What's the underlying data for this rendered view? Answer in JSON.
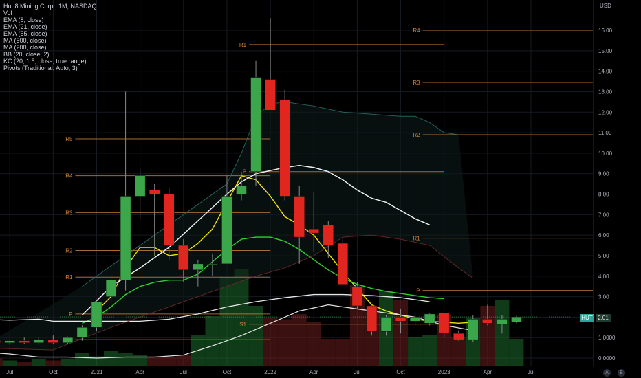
{
  "header": {
    "title": "Hut 8 Mining Corp., 1M, NASDAQ",
    "indicators": [
      "Vol",
      "EMA (8, close)",
      "EMA (21, close)",
      "EMA (55, close)",
      "MA (500, close)",
      "MA (200, close)",
      "BB (20, close, 2)",
      "KC (20, 1.5, close, true range)",
      "Pivots (Traditional, Auto, 3)"
    ]
  },
  "axis": {
    "currency": "USD"
  },
  "last_price": {
    "ticker": "HUT",
    "value": "2.01"
  },
  "corner_buttons": {
    "auto": "A",
    "log": "B"
  },
  "colors": {
    "up": "#3ba64a",
    "down": "#e0261f",
    "ema8": "#f5e400",
    "ema21": "#2fd12f",
    "ema55": "#e8e8e8",
    "pivot": "#d1843a"
  },
  "chart_data": {
    "type": "candlestick",
    "ylim": [
      -0.15,
      17.3
    ],
    "y_ticks": [
      0,
      1,
      2,
      3,
      4,
      5,
      6,
      7,
      8,
      9,
      10,
      11,
      12,
      13,
      14,
      15,
      16
    ],
    "y_tick_labels": [
      "0.0000",
      "1.0000",
      "2.00",
      "3.00",
      "4.00",
      "5.00",
      "6.00",
      "7.00",
      "8.00",
      "9.00",
      "10.00",
      "11.00",
      "12.00",
      "13.00",
      "14.00",
      "15.00",
      "16.00"
    ],
    "x_tick_labels": [
      {
        "label": "Jul",
        "i": -1
      },
      {
        "label": "Oct",
        "i": 2
      },
      {
        "label": "2021",
        "i": 5
      },
      {
        "label": "Apr",
        "i": 8
      },
      {
        "label": "Jul",
        "i": 11
      },
      {
        "label": "Oct",
        "i": 14
      },
      {
        "label": "2022",
        "i": 17
      },
      {
        "label": "Apr",
        "i": 20
      },
      {
        "label": "Jul",
        "i": 23
      },
      {
        "label": "Oct",
        "i": 26
      },
      {
        "label": "2023",
        "i": 29
      },
      {
        "label": "Apr",
        "i": 32
      },
      {
        "label": "Jul",
        "i": 35
      }
    ],
    "candles": [
      {
        "i": -2,
        "o": 0.85,
        "h": 1.0,
        "l": 0.7,
        "c": 0.75
      },
      {
        "i": -1,
        "o": 0.75,
        "h": 0.9,
        "l": 0.65,
        "c": 0.85
      },
      {
        "i": 0,
        "o": 0.85,
        "h": 1.0,
        "l": 0.7,
        "c": 0.75
      },
      {
        "i": 1,
        "o": 0.75,
        "h": 1.0,
        "l": 0.65,
        "c": 0.9
      },
      {
        "i": 2,
        "o": 0.9,
        "h": 1.1,
        "l": 0.7,
        "c": 0.75
      },
      {
        "i": 3,
        "o": 0.75,
        "h": 1.05,
        "l": 0.7,
        "c": 1.0
      },
      {
        "i": 4,
        "o": 1.0,
        "h": 1.6,
        "l": 0.85,
        "c": 1.5
      },
      {
        "i": 5,
        "o": 1.5,
        "h": 2.8,
        "l": 1.3,
        "c": 2.75
      },
      {
        "i": 6,
        "o": 3.0,
        "h": 4.1,
        "l": 2.7,
        "c": 3.8
      },
      {
        "i": 7,
        "o": 3.8,
        "h": 13.0,
        "l": 3.3,
        "c": 7.9
      },
      {
        "i": 8,
        "o": 7.9,
        "h": 9.3,
        "l": 6.8,
        "c": 8.9
      },
      {
        "i": 9,
        "o": 8.2,
        "h": 8.5,
        "l": 5.0,
        "c": 8.0
      },
      {
        "i": 10,
        "o": 8.0,
        "h": 8.3,
        "l": 4.8,
        "c": 5.5
      },
      {
        "i": 11,
        "o": 5.5,
        "h": 5.8,
        "l": 3.7,
        "c": 4.3
      },
      {
        "i": 12,
        "o": 4.3,
        "h": 4.8,
        "l": 3.5,
        "c": 4.6
      },
      {
        "i": 13,
        "o": 4.6,
        "h": 5.1,
        "l": 4.0,
        "c": 4.6
      },
      {
        "i": 14,
        "o": 4.6,
        "h": 8.9,
        "l": 4.6,
        "c": 7.9
      },
      {
        "i": 15,
        "o": 8.0,
        "h": 9.1,
        "l": 7.7,
        "c": 8.4
      },
      {
        "i": 16,
        "o": 9.1,
        "h": 14.5,
        "l": 8.4,
        "c": 13.7
      },
      {
        "i": 17,
        "o": 13.6,
        "h": 16.6,
        "l": 12.2,
        "c": 12.1
      },
      {
        "i": 18,
        "o": 12.6,
        "h": 13.1,
        "l": 7.7,
        "c": 7.9
      },
      {
        "i": 19,
        "o": 7.9,
        "h": 8.4,
        "l": 4.6,
        "c": 5.9
      },
      {
        "i": 20,
        "o": 6.3,
        "h": 8.1,
        "l": 5.2,
        "c": 6.1
      },
      {
        "i": 21,
        "o": 6.5,
        "h": 6.7,
        "l": 4.9,
        "c": 5.5
      },
      {
        "i": 22,
        "o": 5.6,
        "h": 5.9,
        "l": 3.7,
        "c": 3.6
      },
      {
        "i": 23,
        "o": 3.5,
        "h": 3.7,
        "l": 2.4,
        "c": 2.55
      },
      {
        "i": 24,
        "o": 2.55,
        "h": 2.6,
        "l": 1.1,
        "c": 1.3
      },
      {
        "i": 25,
        "o": 1.3,
        "h": 2.1,
        "l": 1.1,
        "c": 2.0
      },
      {
        "i": 26,
        "o": 2.0,
        "h": 2.4,
        "l": 1.2,
        "c": 1.8
      },
      {
        "i": 27,
        "o": 1.8,
        "h": 2.1,
        "l": 1.6,
        "c": 2.0
      },
      {
        "i": 28,
        "o": 1.7,
        "h": 2.2,
        "l": 1.6,
        "c": 2.15
      },
      {
        "i": 29,
        "o": 2.2,
        "h": 2.2,
        "l": 1.0,
        "c": 1.2
      },
      {
        "i": 30,
        "o": 1.2,
        "h": 1.35,
        "l": 0.85,
        "c": 0.9
      },
      {
        "i": 31,
        "o": 0.9,
        "h": 2.1,
        "l": 0.8,
        "c": 1.9
      },
      {
        "i": 32,
        "o": 1.9,
        "h": 2.6,
        "l": 1.6,
        "c": 1.7
      },
      {
        "i": 33,
        "o": 1.65,
        "h": 2.1,
        "l": 1.2,
        "c": 1.9
      },
      {
        "i": 34,
        "o": 1.75,
        "h": 2.05,
        "l": 1.7,
        "c": 2.01
      }
    ],
    "volume": [
      {
        "i": -2,
        "v": 0.35
      },
      {
        "i": -1,
        "v": 0.25
      },
      {
        "i": 0,
        "v": 0.2
      },
      {
        "i": 1,
        "v": 0.3
      },
      {
        "i": 2,
        "v": 0.25
      },
      {
        "i": 3,
        "v": 0.3
      },
      {
        "i": 4,
        "v": 0.6
      },
      {
        "i": 5,
        "v": 0.45
      },
      {
        "i": 6,
        "v": 0.7
      },
      {
        "i": 7,
        "v": 0.6
      },
      {
        "i": 8,
        "v": 0.5
      },
      {
        "i": 9,
        "v": 0.45
      },
      {
        "i": 10,
        "v": 0.4
      },
      {
        "i": 11,
        "v": 0.5
      },
      {
        "i": 12,
        "v": 1.5
      },
      {
        "i": 13,
        "v": 2.4
      },
      {
        "i": 14,
        "v": 4.3
      },
      {
        "i": 15,
        "v": 4.7
      },
      {
        "i": 16,
        "v": 2.9
      },
      {
        "i": 17,
        "v": 2.3
      },
      {
        "i": 18,
        "v": 2.25
      },
      {
        "i": 19,
        "v": 2.5
      },
      {
        "i": 20,
        "v": 2.1
      },
      {
        "i": 21,
        "v": 1.3
      },
      {
        "i": 22,
        "v": 1.3
      },
      {
        "i": 23,
        "v": 3.9
      },
      {
        "i": 24,
        "v": 2.6
      },
      {
        "i": 25,
        "v": 3.6
      },
      {
        "i": 26,
        "v": 3.2
      },
      {
        "i": 27,
        "v": 1.4
      },
      {
        "i": 28,
        "v": 1.5
      },
      {
        "i": 29,
        "v": 2.5
      },
      {
        "i": 30,
        "v": 1.4
      },
      {
        "i": 31,
        "v": 2.3
      },
      {
        "i": 32,
        "v": 2.9
      },
      {
        "i": 33,
        "v": 3.2
      },
      {
        "i": 34,
        "v": 1.3
      }
    ],
    "series": [
      {
        "name": "EMA (8, close)",
        "points": [
          [
            5,
            2.3
          ],
          [
            6,
            3.0
          ],
          [
            7,
            4.4
          ],
          [
            8,
            5.4
          ],
          [
            9,
            5.4
          ],
          [
            10,
            5.0
          ],
          [
            11,
            5.1
          ],
          [
            12,
            5.6
          ],
          [
            13,
            6.3
          ],
          [
            14,
            7.6
          ],
          [
            15,
            8.9
          ],
          [
            16,
            8.7
          ],
          [
            17,
            7.9
          ],
          [
            18,
            6.9
          ],
          [
            19,
            6.5
          ],
          [
            20,
            6.0
          ],
          [
            21,
            5.1
          ],
          [
            22,
            4.2
          ],
          [
            23,
            3.4
          ],
          [
            24,
            2.6
          ],
          [
            25,
            2.3
          ],
          [
            26,
            2.1
          ],
          [
            27,
            1.9
          ],
          [
            28,
            1.8
          ],
          [
            29,
            1.75
          ],
          [
            30,
            1.7
          ],
          [
            31,
            1.75
          ]
        ]
      },
      {
        "name": "EMA (21, close)",
        "points": [
          [
            4,
            1.7
          ],
          [
            5,
            2.0
          ],
          [
            6,
            2.5
          ],
          [
            7,
            3.1
          ],
          [
            8,
            3.5
          ],
          [
            9,
            3.7
          ],
          [
            10,
            3.8
          ],
          [
            11,
            3.8
          ],
          [
            12,
            4.1
          ],
          [
            13,
            4.7
          ],
          [
            14,
            5.3
          ],
          [
            15,
            5.8
          ],
          [
            16,
            5.9
          ],
          [
            17,
            5.9
          ],
          [
            18,
            5.7
          ],
          [
            19,
            5.3
          ],
          [
            20,
            4.8
          ],
          [
            21,
            4.3
          ],
          [
            22,
            3.9
          ],
          [
            23,
            3.6
          ],
          [
            24,
            3.4
          ],
          [
            25,
            3.25
          ],
          [
            26,
            3.15
          ],
          [
            27,
            3.05
          ],
          [
            28,
            2.95
          ],
          [
            29,
            2.9
          ]
        ]
      },
      {
        "name": "EMA (55, close)",
        "points": [
          [
            -3,
            1.9
          ],
          [
            -1,
            1.85
          ],
          [
            1,
            1.9
          ],
          [
            2,
            1.8
          ],
          [
            4,
            1.8
          ],
          [
            5,
            1.8
          ],
          [
            6,
            1.8
          ],
          [
            8,
            1.8
          ],
          [
            10,
            1.9
          ],
          [
            12,
            2.15
          ],
          [
            14,
            2.5
          ],
          [
            16,
            2.75
          ],
          [
            18,
            2.95
          ],
          [
            20,
            3.1
          ],
          [
            22,
            3.1
          ],
          [
            24,
            3.05
          ],
          [
            26,
            2.95
          ],
          [
            28,
            2.75
          ]
        ]
      },
      {
        "name": "MA (200, close)",
        "points": [
          [
            -3,
            0.3
          ],
          [
            -1,
            0.2
          ],
          [
            1,
            0.05
          ],
          [
            3,
            0.05
          ],
          [
            5,
            0.0
          ],
          [
            7,
            0.05
          ],
          [
            9,
            0.05
          ],
          [
            11,
            0.15
          ],
          [
            13,
            0.6
          ],
          [
            15,
            1.1
          ],
          [
            17,
            1.7
          ],
          [
            19,
            2.3
          ],
          [
            21,
            2.6
          ],
          [
            23,
            2.4
          ],
          [
            25,
            2.2
          ],
          [
            27,
            2.0
          ],
          [
            29,
            1.6
          ],
          [
            31,
            1.35
          ]
        ]
      },
      {
        "name": "MA (500, close)",
        "points": [
          [
            4,
            2.1
          ],
          [
            6,
            3.5
          ],
          [
            8,
            4.4
          ],
          [
            10,
            5.4
          ],
          [
            12,
            6.7
          ],
          [
            14,
            8.0
          ],
          [
            15,
            8.6
          ],
          [
            16,
            9.0
          ],
          [
            18,
            9.3
          ],
          [
            19,
            9.4
          ],
          [
            20,
            9.3
          ],
          [
            21,
            9.1
          ],
          [
            22,
            8.7
          ],
          [
            23,
            8.2
          ],
          [
            24,
            7.8
          ],
          [
            25,
            7.6
          ],
          [
            26,
            7.2
          ],
          [
            27,
            6.8
          ],
          [
            28,
            6.5
          ]
        ]
      },
      {
        "name": "BB upper",
        "points": [
          [
            4,
            3.5
          ],
          [
            6,
            4.5
          ],
          [
            8,
            5.5
          ],
          [
            10,
            6.5
          ],
          [
            12,
            7.5
          ],
          [
            14,
            8.5
          ],
          [
            15,
            10.0
          ],
          [
            16,
            11.8
          ],
          [
            17,
            12.4
          ],
          [
            18,
            12.5
          ],
          [
            20,
            12.3
          ],
          [
            22,
            12.0
          ],
          [
            24,
            11.9
          ],
          [
            26,
            11.8
          ],
          [
            27,
            11.8
          ],
          [
            28,
            11.5
          ],
          [
            29,
            11.0
          ],
          [
            30,
            10.9
          ]
        ]
      },
      {
        "name": "KC lower",
        "points": [
          [
            -3,
            0.5
          ],
          [
            2,
            0.4
          ],
          [
            6,
            1.5
          ],
          [
            10,
            2.5
          ],
          [
            14,
            3.5
          ],
          [
            16,
            4.0
          ],
          [
            18,
            4.4
          ],
          [
            20,
            5.0
          ],
          [
            22,
            5.9
          ],
          [
            24,
            6.0
          ],
          [
            26,
            5.8
          ],
          [
            28,
            5.5
          ],
          [
            30,
            4.4
          ],
          [
            31,
            3.9
          ]
        ]
      }
    ],
    "pivots": [
      {
        "label": "R5",
        "value": 10.7,
        "i0": 4,
        "i1": 17
      },
      {
        "label": "R4",
        "value": 8.9,
        "i0": 4,
        "i1": 17
      },
      {
        "label": "R3",
        "value": 7.1,
        "i0": 4,
        "i1": 17
      },
      {
        "label": "R2",
        "value": 5.25,
        "i0": 4,
        "i1": 17
      },
      {
        "label": "R1",
        "value": 3.95,
        "i0": 4,
        "i1": 17
      },
      {
        "label": "P",
        "value": 2.15,
        "i0": 4,
        "i1": 17
      },
      {
        "label": "S1",
        "value": 0.9,
        "i0": 4,
        "i1": 17
      },
      {
        "label": "R1",
        "value": 15.3,
        "i0": 16,
        "i1": 29
      },
      {
        "label": "P",
        "value": 9.1,
        "i0": 16,
        "i1": 29
      },
      {
        "label": "S1",
        "value": 1.65,
        "i0": 16,
        "i1": 29
      },
      {
        "label": "R4",
        "value": 16.0,
        "i0": 28,
        "i1": 41
      },
      {
        "label": "R3",
        "value": 13.45,
        "i0": 28,
        "i1": 41
      },
      {
        "label": "R2",
        "value": 10.9,
        "i0": 28,
        "i1": 41
      },
      {
        "label": "R1",
        "value": 5.85,
        "i0": 28,
        "i1": 41
      },
      {
        "label": "P",
        "value": 3.3,
        "i0": 28,
        "i1": 41
      }
    ]
  }
}
